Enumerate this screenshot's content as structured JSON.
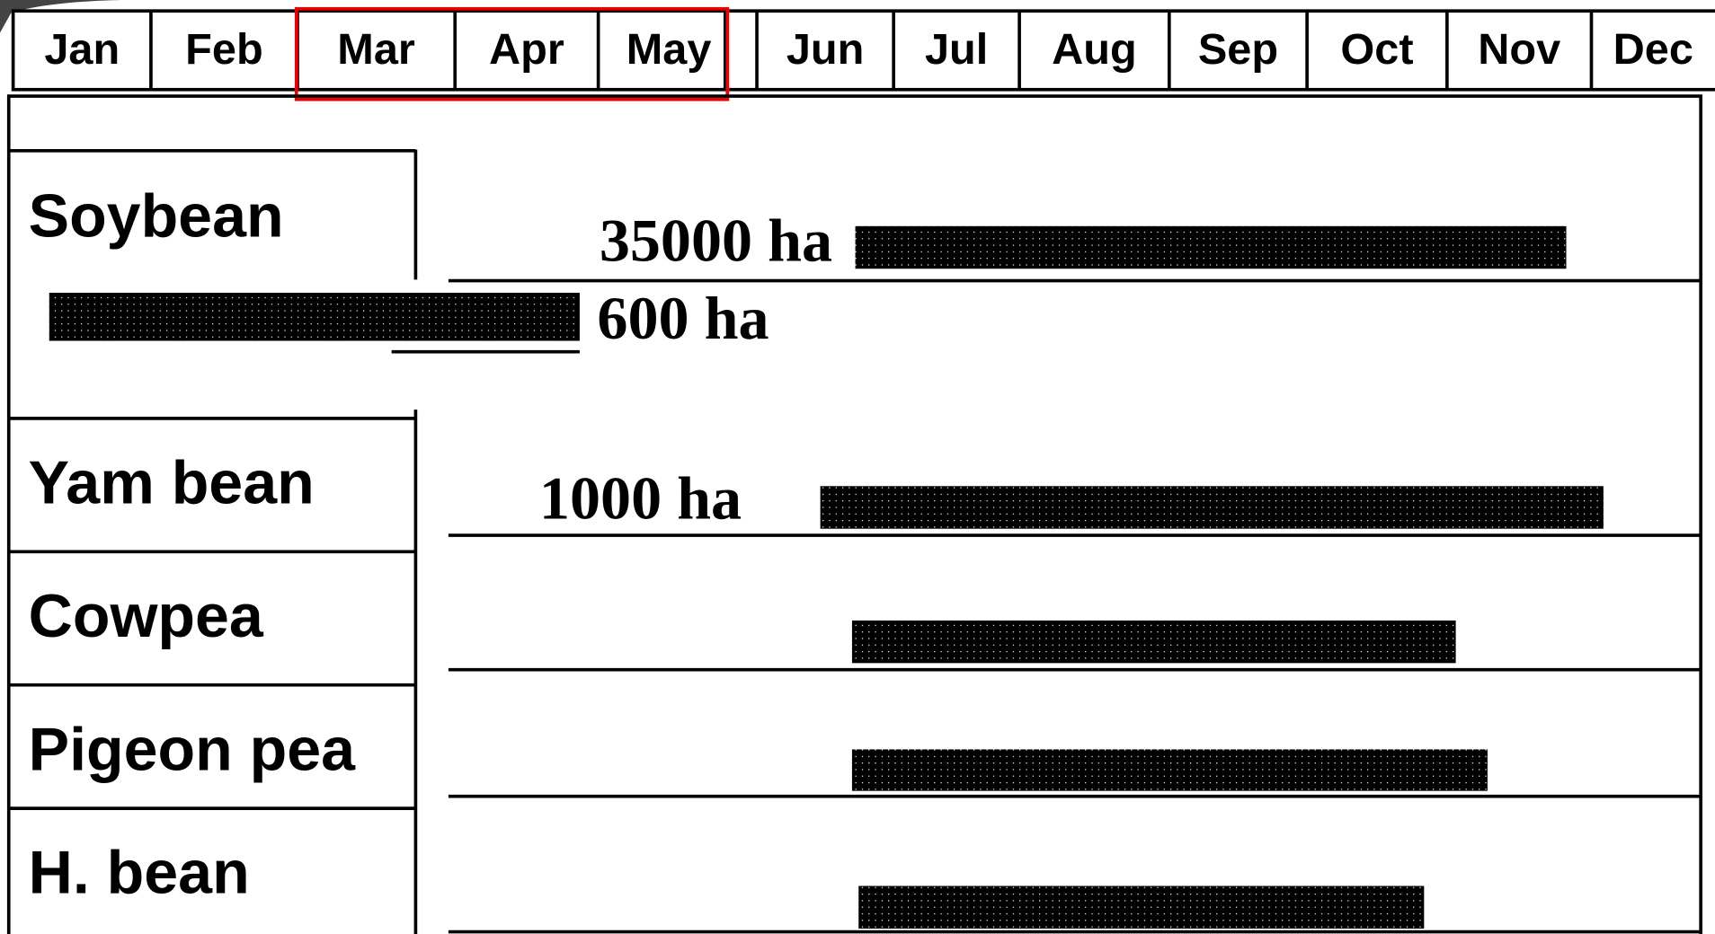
{
  "months": [
    "Jan",
    "Feb",
    "Mar",
    "Apr",
    "May",
    "Jun",
    "Jul",
    "Aug",
    "Sep",
    "Oct",
    "Nov",
    "Dec"
  ],
  "crops": [
    {
      "name": "Soybean",
      "areas": [
        "35000 ha",
        "600 ha"
      ]
    },
    {
      "name": "Yam bean",
      "areas": [
        "1000 ha"
      ]
    },
    {
      "name": "Cowpea"
    },
    {
      "name": "Pigeon pea"
    },
    {
      "name": "H. bean"
    }
  ]
}
